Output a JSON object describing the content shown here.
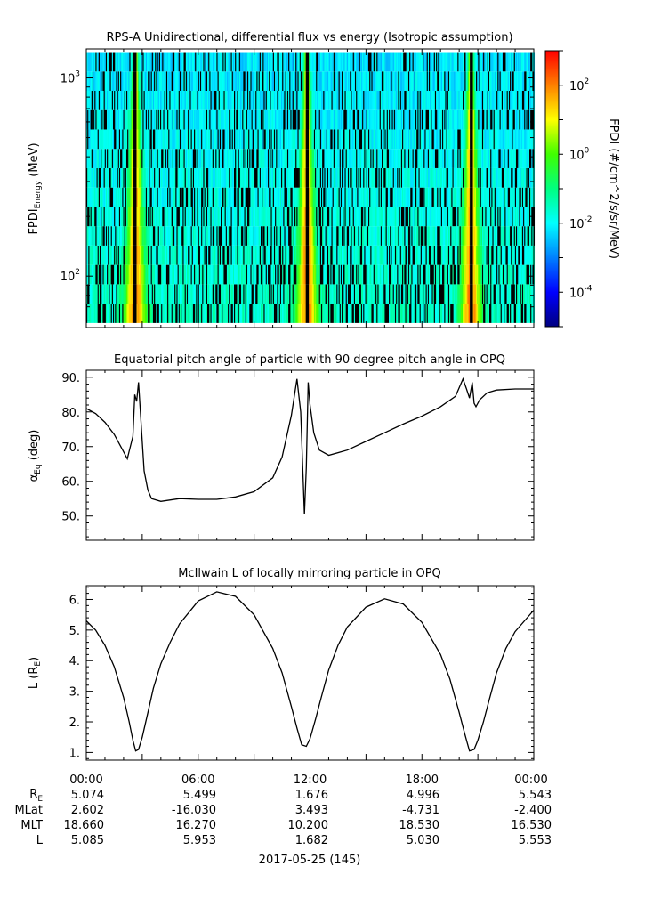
{
  "chart_data": [
    {
      "type": "heatmap",
      "title": "RPS-A Unidirectional, differential flux vs energy (Isotropic assumption)",
      "ylabel_main": "FPDI",
      "ylabel_sub": "Energy",
      "ylabel_unit": "(MeV)",
      "yscale": "log",
      "ylim": [
        55,
        1400
      ],
      "yticks": [
        {
          "base": "10",
          "exp": "2",
          "value": 100
        },
        {
          "base": "10",
          "exp": "3",
          "value": 1000
        }
      ],
      "xlim_hours": [
        0,
        24
      ],
      "peak_hours": [
        2.6,
        11.8,
        20.6
      ],
      "colorbar": {
        "label": "FPDI (#/cm^2/s/sr/MeV)",
        "scale": "log",
        "range_exp": [
          -5,
          3
        ],
        "ticks": [
          {
            "base": "10",
            "exp": "2"
          },
          {
            "base": "10",
            "exp": "0"
          },
          {
            "base": "10",
            "exp": "-2"
          },
          {
            "base": "10",
            "exp": "-4"
          }
        ],
        "colors": [
          "#000080",
          "#0000ff",
          "#0080ff",
          "#00ffff",
          "#00ff80",
          "#40ff00",
          "#ffff00",
          "#ff8000",
          "#ff0000"
        ]
      }
    },
    {
      "type": "line",
      "title": "Equatorial pitch angle of particle with 90 degree pitch angle in OPQ",
      "ylabel_main": "α",
      "ylabel_sub": "Eq",
      "ylabel_unit": "(deg)",
      "ylim": [
        43,
        92
      ],
      "yticks": [
        "90.",
        "80.",
        "70.",
        "60.",
        "50."
      ],
      "xlim_hours": [
        0,
        24
      ],
      "x": [
        0,
        0.5,
        1.0,
        1.5,
        2.0,
        2.2,
        2.5,
        2.6,
        2.7,
        2.8,
        2.9,
        3.1,
        3.3,
        3.5,
        4.0,
        5.0,
        6.0,
        7.0,
        8.0,
        9.0,
        10.0,
        10.5,
        11.0,
        11.3,
        11.5,
        11.7,
        11.8,
        11.9,
        12.0,
        12.2,
        12.5,
        13.0,
        14.0,
        15.0,
        16.0,
        17.0,
        18.0,
        19.0,
        19.8,
        20.2,
        20.4,
        20.55,
        20.7,
        20.8,
        20.9,
        21.1,
        21.5,
        22.0,
        23.0,
        24.0
      ],
      "y": [
        81.0,
        79.5,
        77.0,
        73.5,
        68.5,
        66.5,
        73.0,
        85.0,
        83.0,
        88.5,
        80.0,
        63.0,
        57.5,
        55.0,
        54.2,
        55.0,
        54.8,
        54.8,
        55.5,
        57.0,
        61.0,
        67.0,
        79.0,
        89.5,
        80.0,
        50.5,
        64.0,
        88.5,
        82.0,
        74.0,
        69.0,
        67.5,
        69.0,
        71.5,
        74.0,
        76.5,
        78.8,
        81.5,
        84.5,
        89.5,
        86.5,
        84.0,
        88.5,
        82.5,
        81.5,
        83.5,
        85.5,
        86.3,
        86.6,
        86.6
      ]
    },
    {
      "type": "line",
      "title": "McIlwain L of locally mirroring particle in OPQ",
      "ylabel_main": "L (R",
      "ylabel_sub": "E",
      "ylabel_unit": ")",
      "ylim": [
        0.75,
        6.45
      ],
      "yticks": [
        "6.",
        "5.",
        "4.",
        "3.",
        "2.",
        "1."
      ],
      "xlim_hours": [
        0,
        24
      ],
      "x": [
        0,
        0.5,
        1.0,
        1.5,
        2.0,
        2.3,
        2.5,
        2.65,
        2.8,
        3.0,
        3.3,
        3.6,
        4.0,
        4.5,
        5.0,
        6.0,
        7.0,
        8.0,
        9.0,
        10.0,
        10.5,
        11.0,
        11.3,
        11.55,
        11.8,
        12.0,
        12.3,
        12.6,
        13.0,
        13.5,
        14.0,
        15.0,
        16.0,
        17.0,
        18.0,
        19.0,
        19.5,
        20.0,
        20.3,
        20.55,
        20.8,
        21.0,
        21.3,
        21.6,
        22.0,
        22.5,
        23.0,
        24.0
      ],
      "y": [
        5.3,
        5.0,
        4.5,
        3.8,
        2.8,
        2.0,
        1.4,
        1.05,
        1.1,
        1.5,
        2.3,
        3.1,
        3.9,
        4.6,
        5.2,
        5.95,
        6.25,
        6.1,
        5.5,
        4.4,
        3.6,
        2.5,
        1.8,
        1.25,
        1.2,
        1.45,
        2.1,
        2.8,
        3.7,
        4.5,
        5.1,
        5.75,
        6.02,
        5.85,
        5.25,
        4.2,
        3.4,
        2.3,
        1.6,
        1.05,
        1.1,
        1.4,
        2.0,
        2.7,
        3.6,
        4.4,
        4.95,
        5.65
      ]
    }
  ],
  "x_axis": {
    "tick_labels": [
      "00:00",
      "06:00",
      "12:00",
      "18:00",
      "00:00"
    ],
    "tick_hours": [
      0,
      6,
      12,
      18,
      24
    ],
    "date_label": "2017-05-25 (145)"
  },
  "ephemeris": {
    "rows": [
      {
        "label": "R",
        "sub": "E",
        "values": [
          "5.074",
          "5.499",
          "1.676",
          "4.996",
          "5.543"
        ]
      },
      {
        "label": "MLat",
        "sub": "",
        "values": [
          "2.602",
          "-16.030",
          "3.493",
          "-4.731",
          "-2.400"
        ]
      },
      {
        "label": "MLT",
        "sub": "",
        "values": [
          "18.660",
          "16.270",
          "10.200",
          "18.530",
          "16.530"
        ]
      },
      {
        "label": "L",
        "sub": "",
        "values": [
          "5.085",
          "5.953",
          "1.682",
          "5.030",
          "5.553"
        ]
      }
    ]
  }
}
